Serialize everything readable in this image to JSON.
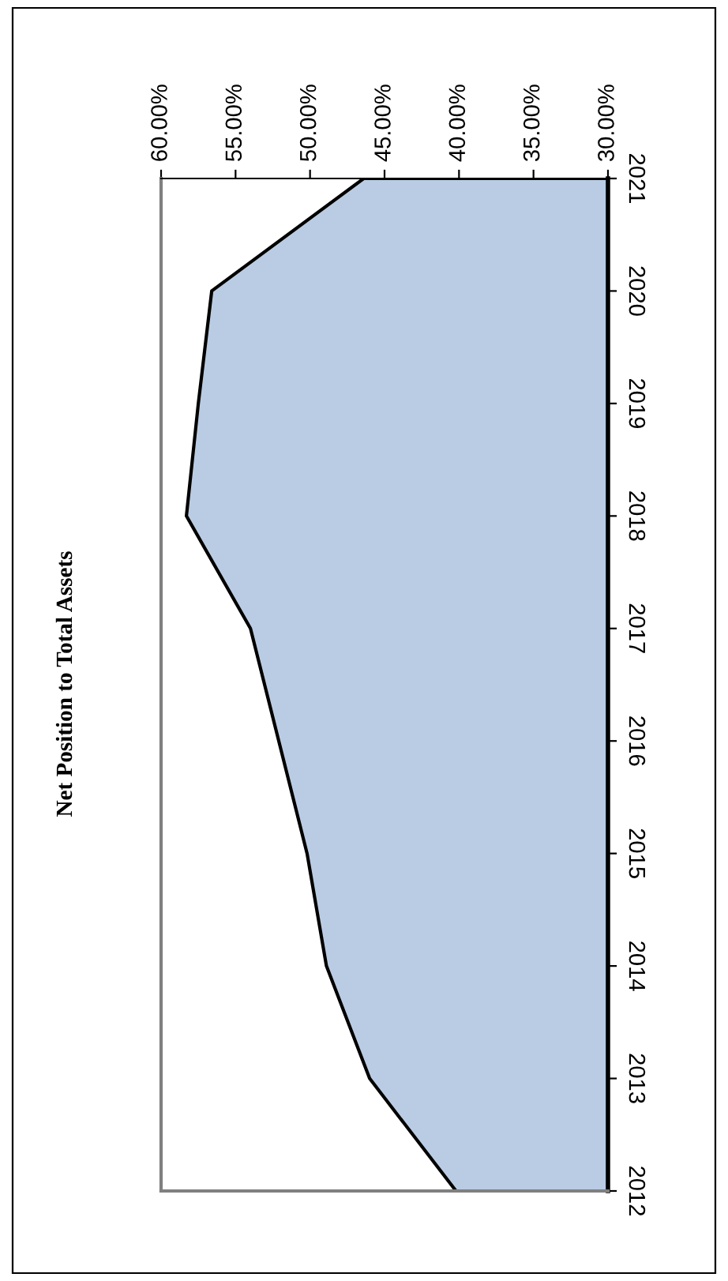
{
  "chart_data": {
    "type": "area",
    "orientation": "horizontal",
    "title": "Net Position to Total Assets",
    "categories": [
      "2021",
      "2020",
      "2019",
      "2018",
      "2017",
      "2016",
      "2015",
      "2014",
      "2013",
      "2012"
    ],
    "values": [
      46.4,
      56.6,
      57.5,
      58.3,
      54.0,
      52.1,
      50.2,
      48.9,
      46.0,
      40.2
    ],
    "color": "#b9cce4",
    "xlim": [
      60,
      30
    ],
    "xticks": [
      {
        "value": 60,
        "label": "60.00%"
      },
      {
        "value": 55,
        "label": "55.00%"
      },
      {
        "value": 50,
        "label": "50.00%"
      },
      {
        "value": 45,
        "label": "45.00%"
      },
      {
        "value": 40,
        "label": "40.00%"
      },
      {
        "value": 35,
        "label": "35.00%"
      },
      {
        "value": 30,
        "label": "30.00%"
      }
    ],
    "grid": false,
    "legend": false
  }
}
